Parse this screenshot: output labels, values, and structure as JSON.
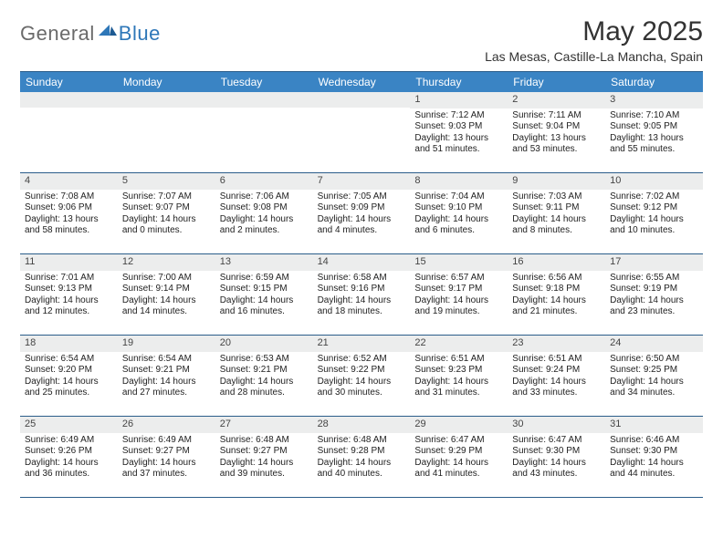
{
  "logo": {
    "text1": "General",
    "text2": "Blue"
  },
  "title": "May 2025",
  "location": "Las Mesas, Castille-La Mancha, Spain",
  "colors": {
    "header_bg": "#3a84c4",
    "header_text": "#ffffff",
    "divider": "#2a5d8a",
    "daynum_bg": "#eceded",
    "logo_gray": "#6a6a6a",
    "logo_blue": "#2e77b8",
    "body_text": "#222222"
  },
  "daysOfWeek": [
    "Sunday",
    "Monday",
    "Tuesday",
    "Wednesday",
    "Thursday",
    "Friday",
    "Saturday"
  ],
  "weeks": [
    [
      null,
      null,
      null,
      null,
      {
        "n": "1",
        "sunrise": "7:12 AM",
        "sunset": "9:03 PM",
        "dl": "13 hours and 51 minutes."
      },
      {
        "n": "2",
        "sunrise": "7:11 AM",
        "sunset": "9:04 PM",
        "dl": "13 hours and 53 minutes."
      },
      {
        "n": "3",
        "sunrise": "7:10 AM",
        "sunset": "9:05 PM",
        "dl": "13 hours and 55 minutes."
      }
    ],
    [
      {
        "n": "4",
        "sunrise": "7:08 AM",
        "sunset": "9:06 PM",
        "dl": "13 hours and 58 minutes."
      },
      {
        "n": "5",
        "sunrise": "7:07 AM",
        "sunset": "9:07 PM",
        "dl": "14 hours and 0 minutes."
      },
      {
        "n": "6",
        "sunrise": "7:06 AM",
        "sunset": "9:08 PM",
        "dl": "14 hours and 2 minutes."
      },
      {
        "n": "7",
        "sunrise": "7:05 AM",
        "sunset": "9:09 PM",
        "dl": "14 hours and 4 minutes."
      },
      {
        "n": "8",
        "sunrise": "7:04 AM",
        "sunset": "9:10 PM",
        "dl": "14 hours and 6 minutes."
      },
      {
        "n": "9",
        "sunrise": "7:03 AM",
        "sunset": "9:11 PM",
        "dl": "14 hours and 8 minutes."
      },
      {
        "n": "10",
        "sunrise": "7:02 AM",
        "sunset": "9:12 PM",
        "dl": "14 hours and 10 minutes."
      }
    ],
    [
      {
        "n": "11",
        "sunrise": "7:01 AM",
        "sunset": "9:13 PM",
        "dl": "14 hours and 12 minutes."
      },
      {
        "n": "12",
        "sunrise": "7:00 AM",
        "sunset": "9:14 PM",
        "dl": "14 hours and 14 minutes."
      },
      {
        "n": "13",
        "sunrise": "6:59 AM",
        "sunset": "9:15 PM",
        "dl": "14 hours and 16 minutes."
      },
      {
        "n": "14",
        "sunrise": "6:58 AM",
        "sunset": "9:16 PM",
        "dl": "14 hours and 18 minutes."
      },
      {
        "n": "15",
        "sunrise": "6:57 AM",
        "sunset": "9:17 PM",
        "dl": "14 hours and 19 minutes."
      },
      {
        "n": "16",
        "sunrise": "6:56 AM",
        "sunset": "9:18 PM",
        "dl": "14 hours and 21 minutes."
      },
      {
        "n": "17",
        "sunrise": "6:55 AM",
        "sunset": "9:19 PM",
        "dl": "14 hours and 23 minutes."
      }
    ],
    [
      {
        "n": "18",
        "sunrise": "6:54 AM",
        "sunset": "9:20 PM",
        "dl": "14 hours and 25 minutes."
      },
      {
        "n": "19",
        "sunrise": "6:54 AM",
        "sunset": "9:21 PM",
        "dl": "14 hours and 27 minutes."
      },
      {
        "n": "20",
        "sunrise": "6:53 AM",
        "sunset": "9:21 PM",
        "dl": "14 hours and 28 minutes."
      },
      {
        "n": "21",
        "sunrise": "6:52 AM",
        "sunset": "9:22 PM",
        "dl": "14 hours and 30 minutes."
      },
      {
        "n": "22",
        "sunrise": "6:51 AM",
        "sunset": "9:23 PM",
        "dl": "14 hours and 31 minutes."
      },
      {
        "n": "23",
        "sunrise": "6:51 AM",
        "sunset": "9:24 PM",
        "dl": "14 hours and 33 minutes."
      },
      {
        "n": "24",
        "sunrise": "6:50 AM",
        "sunset": "9:25 PM",
        "dl": "14 hours and 34 minutes."
      }
    ],
    [
      {
        "n": "25",
        "sunrise": "6:49 AM",
        "sunset": "9:26 PM",
        "dl": "14 hours and 36 minutes."
      },
      {
        "n": "26",
        "sunrise": "6:49 AM",
        "sunset": "9:27 PM",
        "dl": "14 hours and 37 minutes."
      },
      {
        "n": "27",
        "sunrise": "6:48 AM",
        "sunset": "9:27 PM",
        "dl": "14 hours and 39 minutes."
      },
      {
        "n": "28",
        "sunrise": "6:48 AM",
        "sunset": "9:28 PM",
        "dl": "14 hours and 40 minutes."
      },
      {
        "n": "29",
        "sunrise": "6:47 AM",
        "sunset": "9:29 PM",
        "dl": "14 hours and 41 minutes."
      },
      {
        "n": "30",
        "sunrise": "6:47 AM",
        "sunset": "9:30 PM",
        "dl": "14 hours and 43 minutes."
      },
      {
        "n": "31",
        "sunrise": "6:46 AM",
        "sunset": "9:30 PM",
        "dl": "14 hours and 44 minutes."
      }
    ]
  ],
  "labels": {
    "sunrise": "Sunrise:",
    "sunset": "Sunset:",
    "daylight": "Daylight:"
  }
}
